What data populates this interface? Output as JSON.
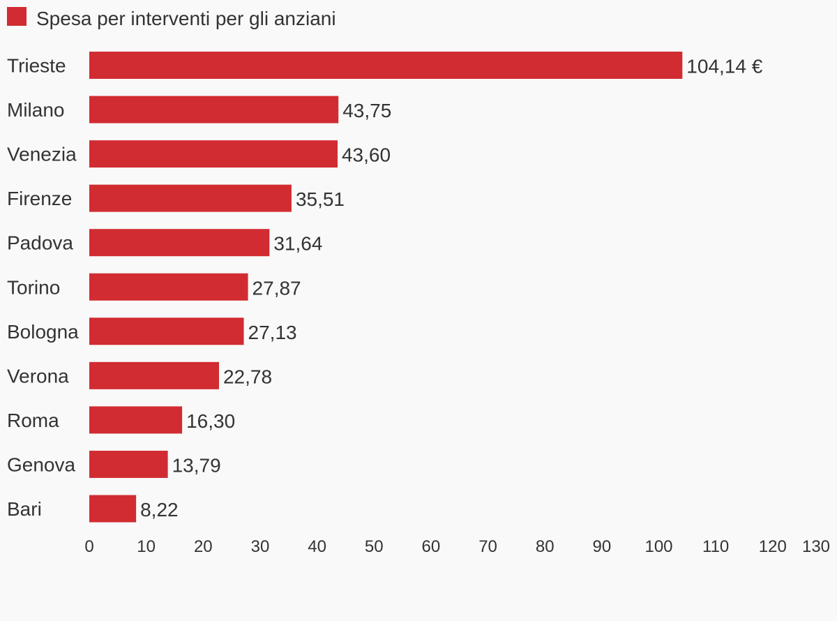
{
  "chart_data": {
    "type": "bar",
    "orientation": "horizontal",
    "series": [
      {
        "name": "Spesa per interventi per gli anziani",
        "color": "#d12c31",
        "values": [
          104.14,
          43.75,
          43.6,
          35.51,
          31.64,
          27.87,
          27.13,
          22.78,
          16.3,
          13.79,
          8.22
        ]
      }
    ],
    "categories": [
      "Trieste",
      "Milano",
      "Venezia",
      "Firenze",
      "Padova",
      "Torino",
      "Bologna",
      "Verona",
      "Roma",
      "Genova",
      "Bari"
    ],
    "value_labels": [
      "104,14 €",
      "43,75",
      "43,60",
      "35,51",
      "31,64",
      "27,87",
      "27,13",
      "22,78",
      "16,30",
      "13,79",
      "8,22"
    ],
    "xlim": [
      0,
      130
    ],
    "x_ticks": [
      0,
      10,
      20,
      30,
      40,
      50,
      60,
      70,
      80,
      90,
      100,
      110,
      120,
      130
    ],
    "legend_position": "top-left",
    "grid": false
  }
}
